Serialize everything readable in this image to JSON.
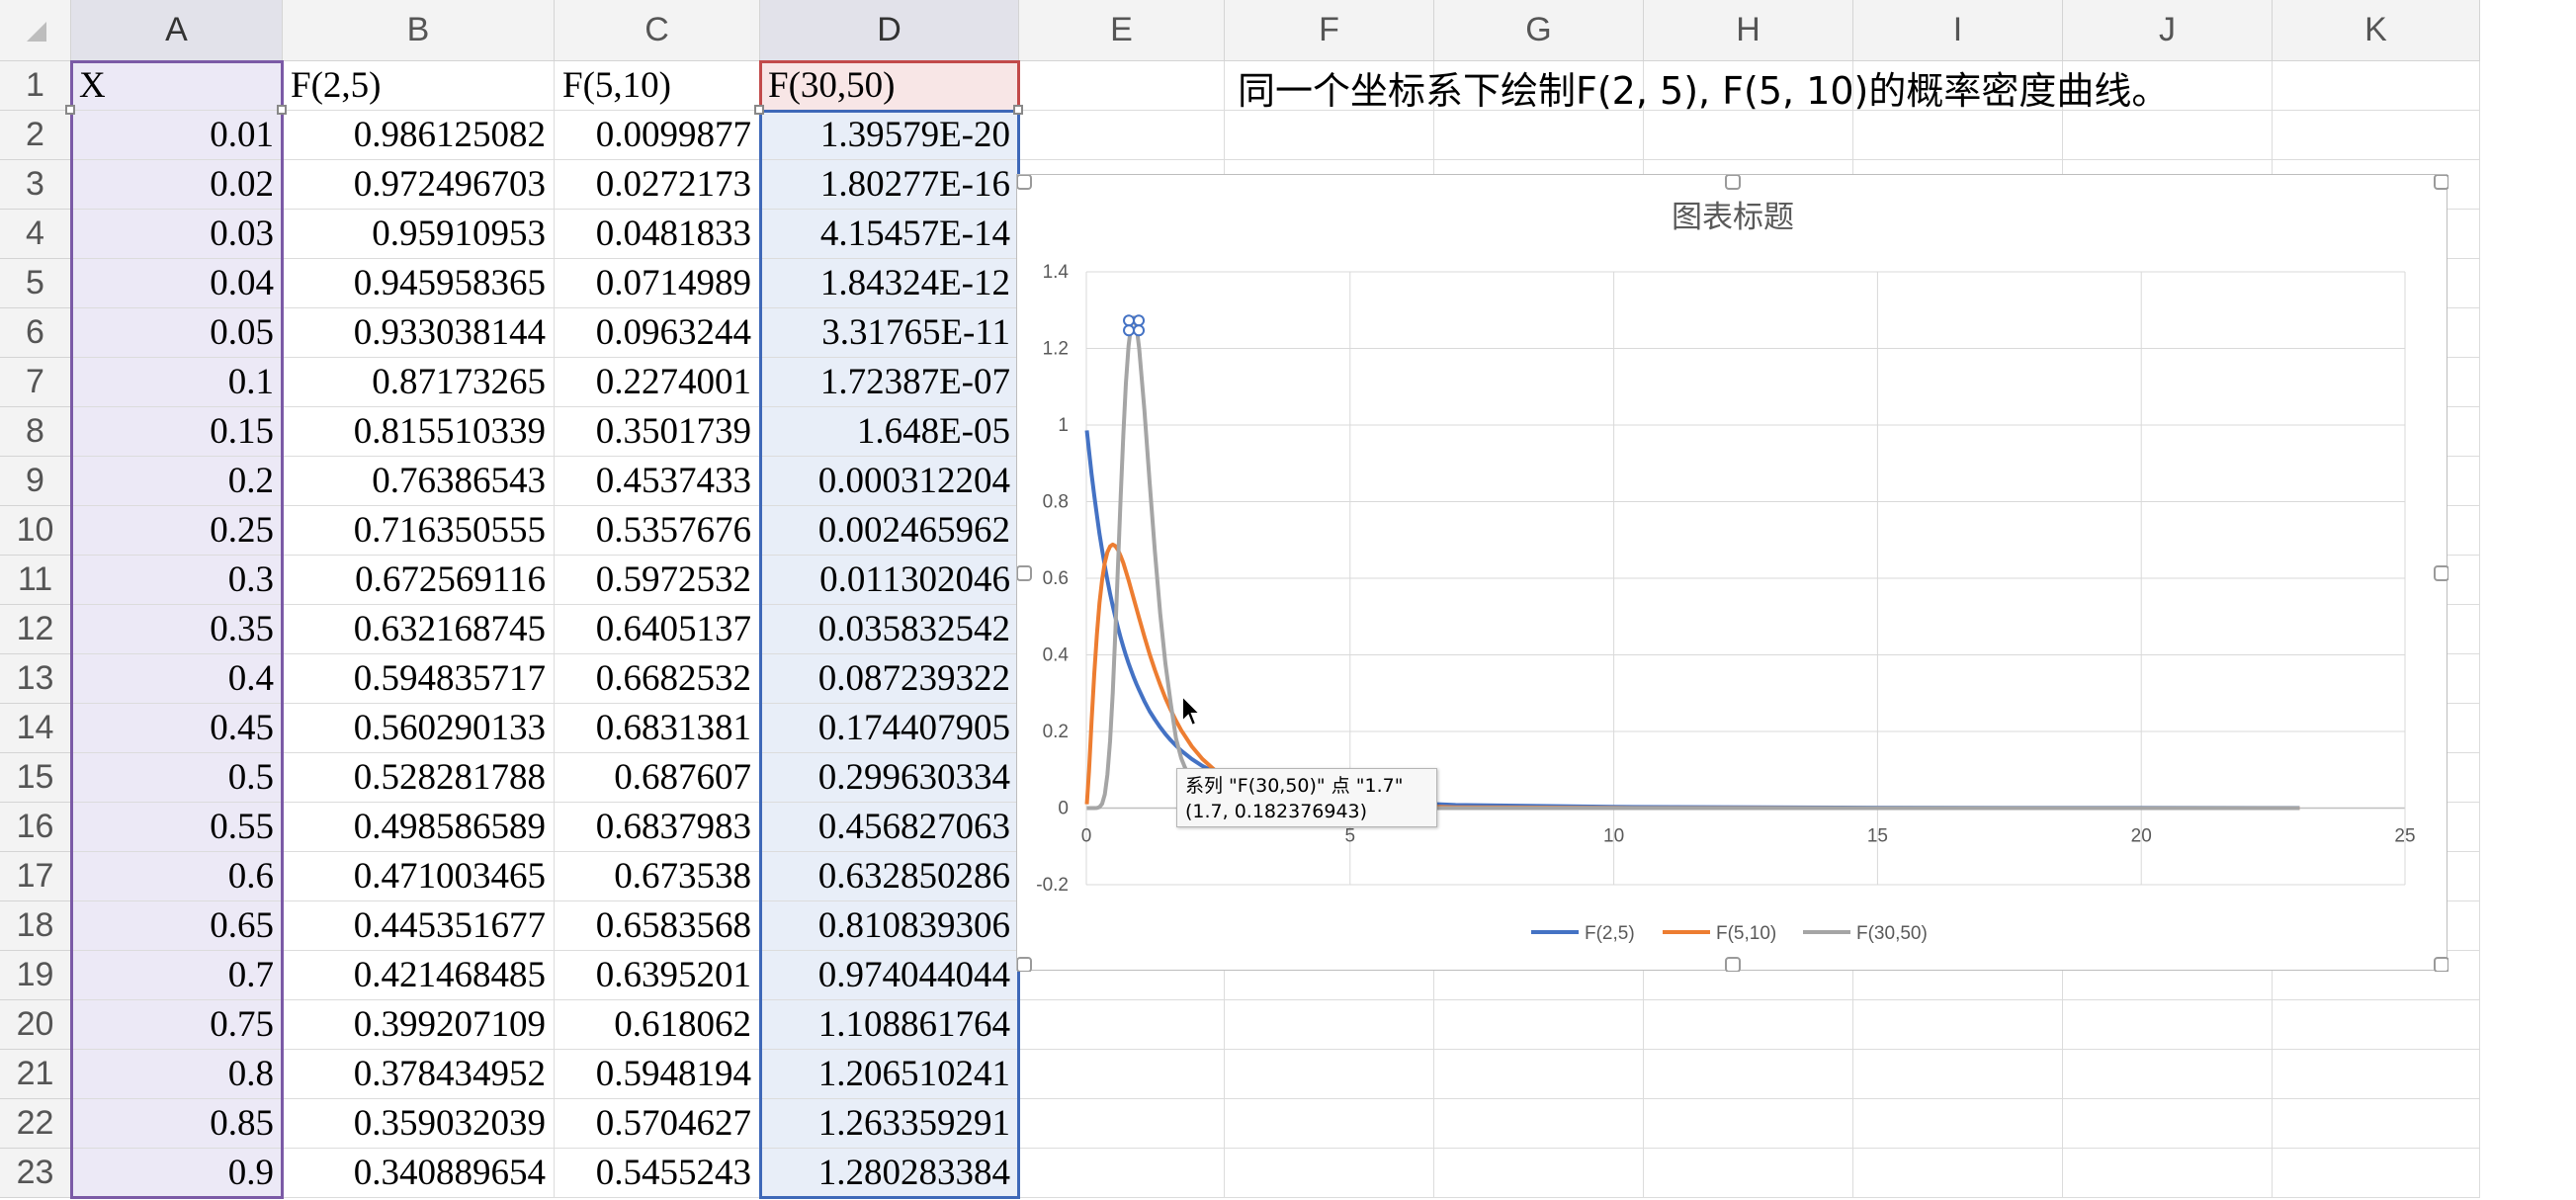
{
  "sheet": {
    "columns": [
      "A",
      "B",
      "C",
      "D",
      "E",
      "F",
      "G",
      "H",
      "I",
      "J",
      "K"
    ],
    "rows": [
      "1",
      "2",
      "3",
      "4",
      "5",
      "6",
      "7",
      "8",
      "9",
      "10",
      "11",
      "12",
      "13",
      "14",
      "15",
      "16",
      "17",
      "18",
      "19",
      "20",
      "21",
      "22",
      "23"
    ],
    "headers": {
      "A": "X",
      "B": "F(2,5)",
      "C": "F(5,10)",
      "D": "F(30,50)"
    },
    "note": "同一个坐标系下绘制F(2, 5), F(5, 10)的概率密度曲线。",
    "data": [
      [
        "0.01",
        "0.986125082",
        "0.0099877",
        "1.39579E-20"
      ],
      [
        "0.02",
        "0.972496703",
        "0.0272173",
        "1.80277E-16"
      ],
      [
        "0.03",
        "0.95910953",
        "0.0481833",
        "4.15457E-14"
      ],
      [
        "0.04",
        "0.945958365",
        "0.0714989",
        "1.84324E-12"
      ],
      [
        "0.05",
        "0.933038144",
        "0.0963244",
        "3.31765E-11"
      ],
      [
        "0.1",
        "0.87173265",
        "0.2274001",
        "1.72387E-07"
      ],
      [
        "0.15",
        "0.815510339",
        "0.3501739",
        "1.648E-05"
      ],
      [
        "0.2",
        "0.76386543",
        "0.4537433",
        "0.000312204"
      ],
      [
        "0.25",
        "0.716350555",
        "0.5357676",
        "0.002465962"
      ],
      [
        "0.3",
        "0.672569116",
        "0.5972532",
        "0.011302046"
      ],
      [
        "0.35",
        "0.632168745",
        "0.6405137",
        "0.035832542"
      ],
      [
        "0.4",
        "0.594835717",
        "0.6682532",
        "0.087239322"
      ],
      [
        "0.45",
        "0.560290133",
        "0.6831381",
        "0.174407905"
      ],
      [
        "0.5",
        "0.528281788",
        "0.687607",
        "0.299630334"
      ],
      [
        "0.55",
        "0.498586589",
        "0.6837983",
        "0.456827063"
      ],
      [
        "0.6",
        "0.471003465",
        "0.673538",
        "0.632850286"
      ],
      [
        "0.65",
        "0.445351677",
        "0.6583568",
        "0.810839306"
      ],
      [
        "0.7",
        "0.421468485",
        "0.6395201",
        "0.974044044"
      ],
      [
        "0.75",
        "0.399207109",
        "0.618062",
        "1.108861764"
      ],
      [
        "0.8",
        "0.378434952",
        "0.5948194",
        "1.206510241"
      ],
      [
        "0.85",
        "0.359032039",
        "0.5704627",
        "1.263359291"
      ],
      [
        "0.9",
        "0.340889654",
        "0.5455243",
        "1.280283384"
      ]
    ]
  },
  "colors": {
    "series1": "#4472c4",
    "series2": "#ed7d31",
    "series3": "#a5a5a5",
    "selectA": "#7b5aa6",
    "selectD": "#3e68b8"
  },
  "tooltip": {
    "line1": "系列 \"F(30,50)\" 点 \"1.7\"",
    "line2": "(1.7, 0.182376943)"
  },
  "chart_data": {
    "type": "line",
    "title": "图表标题",
    "xlim": [
      0,
      25
    ],
    "ylim": [
      -0.2,
      1.4
    ],
    "xticks": [
      "0",
      "5",
      "10",
      "15",
      "20",
      "25"
    ],
    "yticks": [
      "-0.2",
      "0",
      "0.2",
      "0.4",
      "0.6",
      "0.8",
      "1",
      "1.2",
      "1.4"
    ],
    "grid": true,
    "legend": "bottom",
    "x": [
      0.01,
      0.05,
      0.1,
      0.15,
      0.2,
      0.25,
      0.3,
      0.35,
      0.4,
      0.45,
      0.5,
      0.55,
      0.6,
      0.65,
      0.7,
      0.75,
      0.8,
      0.85,
      0.9,
      0.95,
      1.0,
      1.1,
      1.2,
      1.3,
      1.4,
      1.5,
      1.6,
      1.7,
      1.8,
      2.0,
      2.2,
      2.5,
      3,
      4,
      5,
      7,
      10,
      15,
      20,
      23
    ],
    "series": [
      {
        "name": "F(2,5)",
        "values": [
          0.986,
          0.933,
          0.872,
          0.816,
          0.764,
          0.716,
          0.673,
          0.632,
          0.595,
          0.56,
          0.528,
          0.499,
          0.471,
          0.445,
          0.421,
          0.399,
          0.378,
          0.359,
          0.341,
          0.324,
          0.308,
          0.279,
          0.253,
          0.231,
          0.211,
          0.193,
          0.177,
          0.163,
          0.15,
          0.128,
          0.11,
          0.089,
          0.064,
          0.035,
          0.02,
          0.008,
          0.003,
          0.001,
          0.0004,
          0.0003
        ]
      },
      {
        "name": "F(5,10)",
        "values": [
          0.01,
          0.096,
          0.227,
          0.35,
          0.454,
          0.536,
          0.597,
          0.641,
          0.668,
          0.683,
          0.688,
          0.684,
          0.674,
          0.658,
          0.64,
          0.618,
          0.595,
          0.57,
          0.546,
          0.521,
          0.496,
          0.448,
          0.402,
          0.36,
          0.322,
          0.287,
          0.256,
          0.228,
          0.203,
          0.161,
          0.128,
          0.091,
          0.054,
          0.021,
          0.009,
          0.002,
          0.0005,
          0.0001,
          0.0,
          0.0
        ]
      },
      {
        "name": "F(30,50)",
        "values": [
          0.0,
          0.0,
          0.0,
          2e-05,
          0.0003,
          0.0025,
          0.0113,
          0.0358,
          0.0872,
          0.1744,
          0.2996,
          0.4568,
          0.6329,
          0.8108,
          0.974,
          1.1089,
          1.2065,
          1.2634,
          1.2803,
          1.258,
          1.201,
          1.04,
          0.851,
          0.668,
          0.508,
          0.377,
          0.273,
          0.182,
          0.13,
          0.062,
          0.028,
          0.008,
          0.001,
          0.0,
          0.0,
          0.0,
          0.0,
          0.0,
          0.0,
          0.0
        ]
      }
    ]
  }
}
